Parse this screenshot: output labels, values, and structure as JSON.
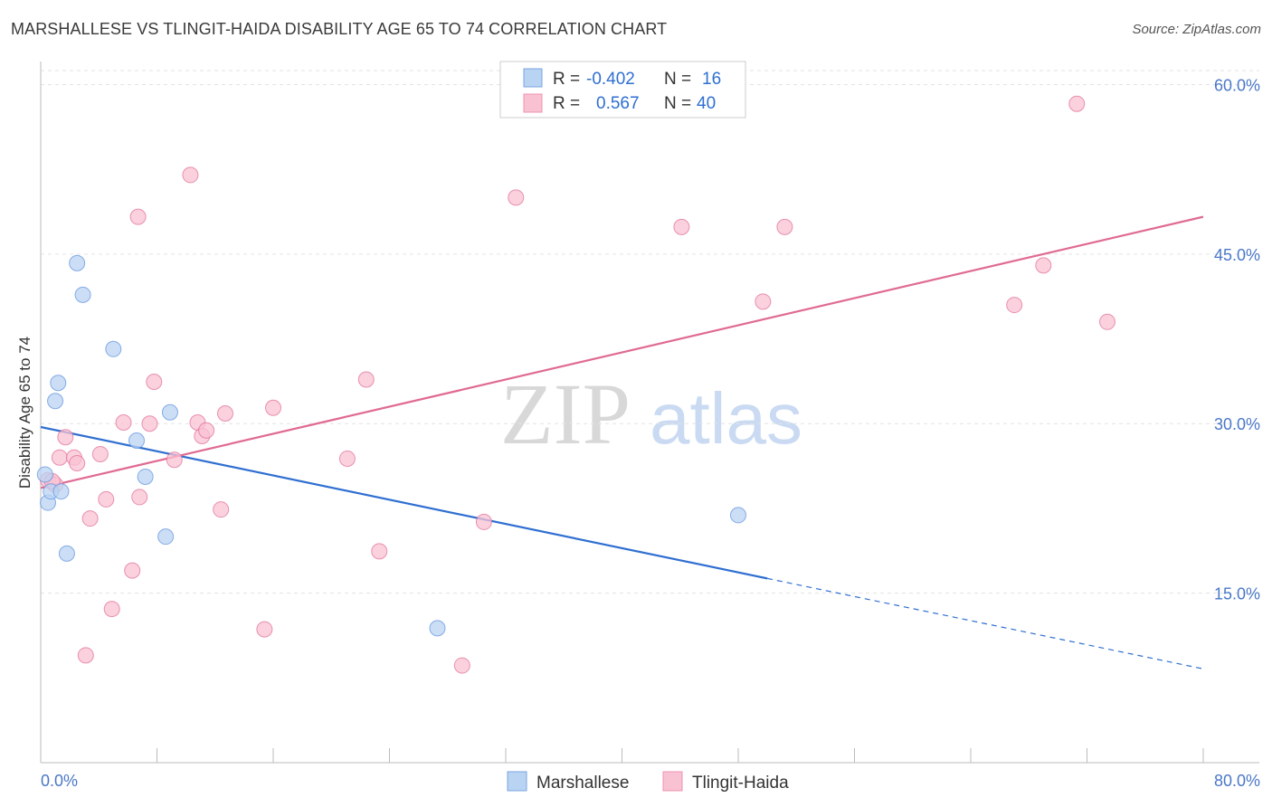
{
  "header": {
    "title": "MARSHALLESE VS TLINGIT-HAIDA DISABILITY AGE 65 TO 74 CORRELATION CHART",
    "source": "Source: ZipAtlas.com"
  },
  "watermark": {
    "zip": "ZIP",
    "atlas": "atlas"
  },
  "legend": {
    "rows": [
      {
        "r_label": "R =",
        "r_value": "-0.402",
        "n_label": "N =",
        "n_value": "16",
        "color": "#a9c8f0"
      },
      {
        "r_label": "R =",
        "r_value": "0.567",
        "n_label": "N =",
        "n_value": "40",
        "color": "#f7b8ca"
      }
    ]
  },
  "chart_data": {
    "type": "scatter",
    "title": "MARSHALLESE VS TLINGIT-HAIDA DISABILITY AGE 65 TO 74 CORRELATION CHART",
    "xlabel": "",
    "ylabel": "Disability Age 65 to 74",
    "xlim": [
      0,
      80
    ],
    "ylim": [
      0,
      63
    ],
    "x_tick_labels": [
      "0.0%",
      "80.0%"
    ],
    "y_ticks": [
      15,
      30,
      45,
      60
    ],
    "y_tick_labels": [
      "15.0%",
      "30.0%",
      "45.0%",
      "60.0%"
    ],
    "grid": true,
    "series": [
      {
        "name": "Marshallese",
        "color": "#5b8fdc",
        "fill": "#b9d3f3",
        "points": [
          [
            0.3,
            25.5
          ],
          [
            0.5,
            23.0
          ],
          [
            0.7,
            24.0
          ],
          [
            1.0,
            32.0
          ],
          [
            1.2,
            33.6
          ],
          [
            1.4,
            24.0
          ],
          [
            1.8,
            18.5
          ],
          [
            2.5,
            44.2
          ],
          [
            2.9,
            41.4
          ],
          [
            5.0,
            36.6
          ],
          [
            6.6,
            28.5
          ],
          [
            7.2,
            25.3
          ],
          [
            8.6,
            20.0
          ],
          [
            8.9,
            31.0
          ],
          [
            27.3,
            11.9
          ],
          [
            48.0,
            21.9
          ]
        ],
        "trend": {
          "x0": 0,
          "y0": 29.7,
          "x1": 50,
          "y1": 16.3,
          "dashed_to_x": 80,
          "dashed_to_y": 8.3
        }
      },
      {
        "name": "Tlingit-Haida",
        "color": "#e06a93",
        "fill": "#f9c2d3",
        "points": [
          [
            0.5,
            25.0
          ],
          [
            1.0,
            24.6
          ],
          [
            1.3,
            27.0
          ],
          [
            1.7,
            28.8
          ],
          [
            2.3,
            27.0
          ],
          [
            2.5,
            26.5
          ],
          [
            3.1,
            9.5
          ],
          [
            3.4,
            21.6
          ],
          [
            4.1,
            27.3
          ],
          [
            4.5,
            23.3
          ],
          [
            4.9,
            13.6
          ],
          [
            5.7,
            30.1
          ],
          [
            6.3,
            17.0
          ],
          [
            6.7,
            48.3
          ],
          [
            6.8,
            23.5
          ],
          [
            7.5,
            30.0
          ],
          [
            7.8,
            33.7
          ],
          [
            9.2,
            26.8
          ],
          [
            10.3,
            52.0
          ],
          [
            10.8,
            30.1
          ],
          [
            11.1,
            28.9
          ],
          [
            11.4,
            29.4
          ],
          [
            12.4,
            22.4
          ],
          [
            12.7,
            30.9
          ],
          [
            15.4,
            11.8
          ],
          [
            16.0,
            31.4
          ],
          [
            21.1,
            26.9
          ],
          [
            22.4,
            33.9
          ],
          [
            23.3,
            18.7
          ],
          [
            29.0,
            8.6
          ],
          [
            30.5,
            21.3
          ],
          [
            32.7,
            50.0
          ],
          [
            44.1,
            47.4
          ],
          [
            49.7,
            40.8
          ],
          [
            51.2,
            47.4
          ],
          [
            67.0,
            40.5
          ],
          [
            69.0,
            44.0
          ],
          [
            71.3,
            58.3
          ],
          [
            73.4,
            39.0
          ],
          [
            0.8,
            24.9
          ]
        ],
        "trend": {
          "x0": 0,
          "y0": 24.3,
          "x1": 80,
          "y1": 48.3
        }
      }
    ]
  }
}
